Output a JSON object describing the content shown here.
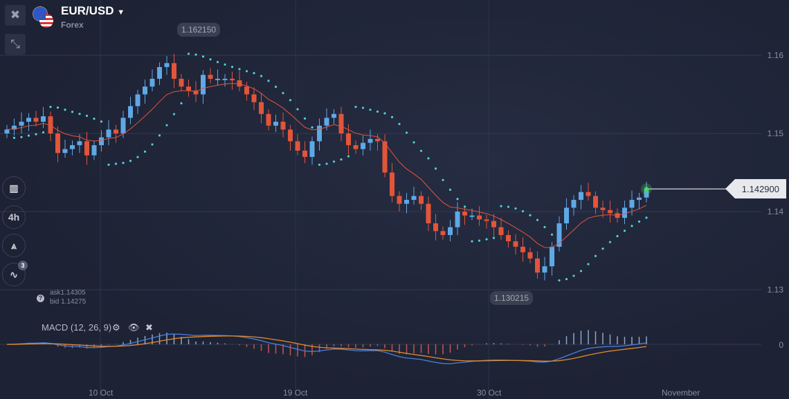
{
  "header": {
    "symbol": "EUR/USD",
    "category": "Forex",
    "close_icon": "close-icon",
    "collapse_icon": "collapse-arrows-icon"
  },
  "toolbar": {
    "items": [
      {
        "icon": "candlestick-chart-icon"
      },
      {
        "label": "4h"
      },
      {
        "icon": "compass-drawing-icon"
      },
      {
        "icon": "indicators-icon",
        "badge": "3"
      }
    ]
  },
  "quote": {
    "ask": "ask1.14305",
    "bid": "bid 1.14275"
  },
  "indicator": {
    "label": "MACD (12, 26, 9)",
    "settings_icon": "gear-icon",
    "visibility_icon": "eye-icon",
    "remove_icon": "close-icon"
  },
  "markers": {
    "high": "1.162150",
    "low": "1.130215",
    "current": "1.142900"
  },
  "colors": {
    "up": "#5fa8e6",
    "down": "#e2553a",
    "sar": "#4fd1d9",
    "ma": "#e2553a",
    "macd": "#4a7fe0",
    "signal": "#e58a2a",
    "current_dot": "#4cdc52"
  },
  "chart_data": {
    "type": "candlestick",
    "y_ticks": [
      "1.16",
      "1.15",
      "1.14",
      "1.13"
    ],
    "y_values": [
      1.16,
      1.15,
      1.14,
      1.13
    ],
    "x_ticks": [
      "10 Oct",
      "19 Oct",
      "30 Oct",
      "November"
    ],
    "macd_zero_label": "0",
    "closes": [
      1.1505,
      1.151,
      1.1515,
      1.152,
      1.1515,
      1.1522,
      1.15,
      1.1475,
      1.148,
      1.1485,
      1.149,
      1.1472,
      1.1485,
      1.1495,
      1.1505,
      1.15,
      1.152,
      1.1535,
      1.155,
      1.156,
      1.157,
      1.1585,
      1.159,
      1.157,
      1.156,
      1.1555,
      1.155,
      1.1575,
      1.157,
      1.157,
      1.157,
      1.1568,
      1.156,
      1.155,
      1.154,
      1.1525,
      1.151,
      1.1515,
      1.1505,
      1.149,
      1.1478,
      1.147,
      1.149,
      1.151,
      1.152,
      1.1525,
      1.15,
      1.1485,
      1.148,
      1.1488,
      1.1493,
      1.149,
      1.145,
      1.142,
      1.141,
      1.1415,
      1.142,
      1.141,
      1.1385,
      1.1375,
      1.137,
      1.138,
      1.14,
      1.1395,
      1.1395,
      1.139,
      1.1388,
      1.138,
      1.137,
      1.1362,
      1.1355,
      1.1348,
      1.134,
      1.1322,
      1.133,
      1.1355,
      1.1385,
      1.1405,
      1.1415,
      1.1425,
      1.142,
      1.1405,
      1.1402,
      1.1398,
      1.1392,
      1.1405,
      1.1415,
      1.1418,
      1.1429
    ]
  }
}
